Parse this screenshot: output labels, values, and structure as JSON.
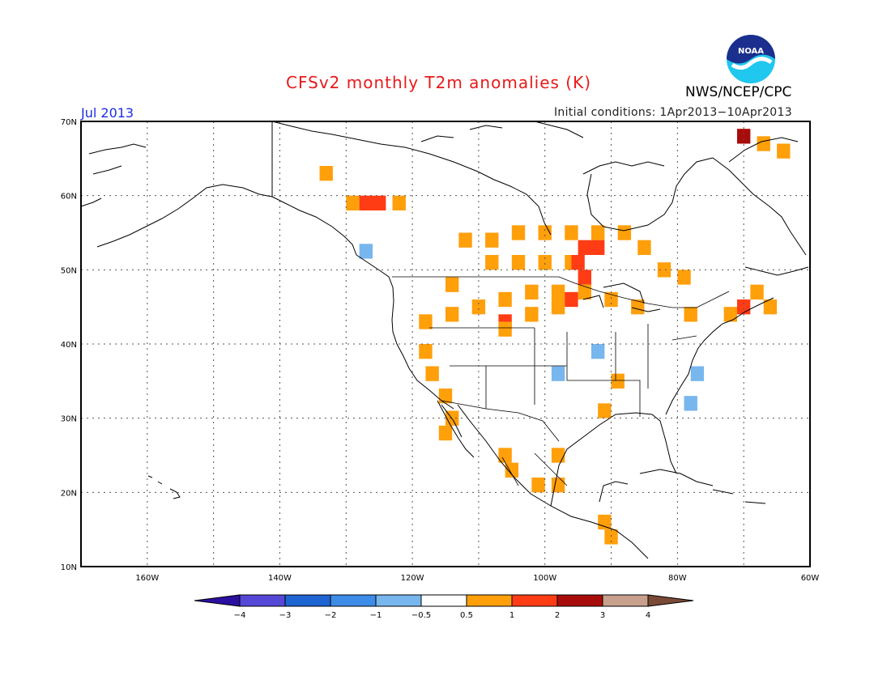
{
  "header": {
    "title": "CFSv2 monthly T2m anomalies (K)",
    "agency": "NWS/NCEP/CPC",
    "month": "Jul 2013",
    "initial_conditions": "Initial conditions: 1Apr2013−10Apr2013",
    "logo_text": "NOAA"
  },
  "map": {
    "lon_range": [
      -170,
      -60
    ],
    "lat_range": [
      10,
      70
    ],
    "lat_ticks": [
      {
        "value": 70,
        "label": "70N"
      },
      {
        "value": 60,
        "label": "60N"
      },
      {
        "value": 50,
        "label": "50N"
      },
      {
        "value": 40,
        "label": "40N"
      },
      {
        "value": 30,
        "label": "30N"
      },
      {
        "value": 20,
        "label": "20N"
      },
      {
        "value": 10,
        "label": "10N"
      }
    ],
    "lon_ticks": [
      {
        "value": -160,
        "label": "160W"
      },
      {
        "value": -140,
        "label": "140W"
      },
      {
        "value": -120,
        "label": "120W"
      },
      {
        "value": -100,
        "label": "100W"
      },
      {
        "value": -80,
        "label": "80W"
      },
      {
        "value": -60,
        "label": "60W"
      }
    ],
    "grid": "dotted",
    "anomaly_cells": [
      {
        "lon": -133,
        "lat": 63,
        "class": "0.5-1"
      },
      {
        "lon": -129,
        "lat": 59,
        "class": "0.5-1"
      },
      {
        "lon": -127,
        "lat": 59,
        "class": "1-2"
      },
      {
        "lon": -125,
        "lat": 59,
        "class": "1-2"
      },
      {
        "lon": -122,
        "lat": 59,
        "class": "0.5-1"
      },
      {
        "lon": -127,
        "lat": 52.5,
        "class": "-1--0.5"
      },
      {
        "lon": -112,
        "lat": 54,
        "class": "0.5-1"
      },
      {
        "lon": -108,
        "lat": 54,
        "class": "0.5-1"
      },
      {
        "lon": -104,
        "lat": 55,
        "class": "0.5-1"
      },
      {
        "lon": -100,
        "lat": 55,
        "class": "0.5-1"
      },
      {
        "lon": -96,
        "lat": 55,
        "class": "0.5-1"
      },
      {
        "lon": -92,
        "lat": 55,
        "class": "0.5-1"
      },
      {
        "lon": -88,
        "lat": 55,
        "class": "0.5-1"
      },
      {
        "lon": -85,
        "lat": 53,
        "class": "0.5-1"
      },
      {
        "lon": -82,
        "lat": 50,
        "class": "0.5-1"
      },
      {
        "lon": -79,
        "lat": 49,
        "class": "0.5-1"
      },
      {
        "lon": -100,
        "lat": 51,
        "class": "0.5-1"
      },
      {
        "lon": -96,
        "lat": 51,
        "class": "0.5-1"
      },
      {
        "lon": -104,
        "lat": 51,
        "class": "0.5-1"
      },
      {
        "lon": -108,
        "lat": 51,
        "class": "0.5-1"
      },
      {
        "lon": -94,
        "lat": 53,
        "class": "1-2"
      },
      {
        "lon": -92,
        "lat": 53,
        "class": "1-2"
      },
      {
        "lon": -95,
        "lat": 51,
        "class": "1-2"
      },
      {
        "lon": -94,
        "lat": 49,
        "class": "1-2"
      },
      {
        "lon": -94,
        "lat": 47,
        "class": "0.5-1"
      },
      {
        "lon": -98,
        "lat": 47,
        "class": "0.5-1"
      },
      {
        "lon": -102,
        "lat": 47,
        "class": "0.5-1"
      },
      {
        "lon": -106,
        "lat": 46,
        "class": "0.5-1"
      },
      {
        "lon": -110,
        "lat": 45,
        "class": "0.5-1"
      },
      {
        "lon": -114,
        "lat": 48,
        "class": "0.5-1"
      },
      {
        "lon": -114,
        "lat": 44,
        "class": "0.5-1"
      },
      {
        "lon": -118,
        "lat": 43,
        "class": "0.5-1"
      },
      {
        "lon": -106,
        "lat": 43,
        "class": "1-2"
      },
      {
        "lon": -106,
        "lat": 42,
        "class": "0.5-1"
      },
      {
        "lon": -102,
        "lat": 44,
        "class": "0.5-1"
      },
      {
        "lon": -98,
        "lat": 45,
        "class": "0.5-1"
      },
      {
        "lon": -90,
        "lat": 46,
        "class": "0.5-1"
      },
      {
        "lon": -86,
        "lat": 45,
        "class": "0.5-1"
      },
      {
        "lon": -118,
        "lat": 39,
        "class": "0.5-1"
      },
      {
        "lon": -117,
        "lat": 36,
        "class": "0.5-1"
      },
      {
        "lon": -115,
        "lat": 33,
        "class": "0.5-1"
      },
      {
        "lon": -114,
        "lat": 30,
        "class": "0.5-1"
      },
      {
        "lon": -115,
        "lat": 28,
        "class": "0.5-1"
      },
      {
        "lon": -98,
        "lat": 36,
        "class": "-1--0.5"
      },
      {
        "lon": -92,
        "lat": 39,
        "class": "-1--0.5"
      },
      {
        "lon": -77,
        "lat": 36,
        "class": "-1--0.5"
      },
      {
        "lon": -78,
        "lat": 32,
        "class": "-1--0.5"
      },
      {
        "lon": -91,
        "lat": 31,
        "class": "0.5-1"
      },
      {
        "lon": -89,
        "lat": 35,
        "class": "0.5-1"
      },
      {
        "lon": -78,
        "lat": 44,
        "class": "0.5-1"
      },
      {
        "lon": -72,
        "lat": 44,
        "class": "0.5-1"
      },
      {
        "lon": -70,
        "lat": 45,
        "class": "1-2"
      },
      {
        "lon": -68,
        "lat": 47,
        "class": "0.5-1"
      },
      {
        "lon": -66,
        "lat": 45,
        "class": "0.5-1"
      },
      {
        "lon": -70,
        "lat": 68,
        "class": "2-3"
      },
      {
        "lon": -67,
        "lat": 67,
        "class": "0.5-1"
      },
      {
        "lon": -64,
        "lat": 66,
        "class": "0.5-1"
      },
      {
        "lon": -106,
        "lat": 25,
        "class": "0.5-1"
      },
      {
        "lon": -105,
        "lat": 23,
        "class": "0.5-1"
      },
      {
        "lon": -98,
        "lat": 25,
        "class": "0.5-1"
      },
      {
        "lon": -101,
        "lat": 21,
        "class": "0.5-1"
      },
      {
        "lon": -98,
        "lat": 21,
        "class": "0.5-1"
      },
      {
        "lon": -91,
        "lat": 16,
        "class": "0.5-1"
      },
      {
        "lon": -90,
        "lat": 14,
        "class": "0.5-1"
      },
      {
        "lon": -96,
        "lat": 46,
        "class": "1-2"
      }
    ]
  },
  "colorbar": {
    "labels": [
      "−4",
      "−3",
      "−2",
      "−1",
      "−0.5",
      "0.5",
      "1",
      "2",
      "3",
      "4"
    ],
    "classes": [
      {
        "range": "<-4",
        "color": "#2b0fa0"
      },
      {
        "range": "-4--3",
        "color": "#5548d6"
      },
      {
        "range": "-3--2",
        "color": "#1e64d2"
      },
      {
        "range": "-2--1",
        "color": "#3c8ce8"
      },
      {
        "range": "-1--0.5",
        "color": "#78b6ee"
      },
      {
        "range": "-0.5-0.5",
        "color": "#ffffff"
      },
      {
        "range": "0.5-1",
        "color": "#ff9f0a"
      },
      {
        "range": "1-2",
        "color": "#ff3c14"
      },
      {
        "range": "2-3",
        "color": "#a80c0a"
      },
      {
        "range": "3-4",
        "color": "#c8a08c"
      },
      {
        "range": ">4",
        "color": "#7b4a37"
      }
    ]
  }
}
